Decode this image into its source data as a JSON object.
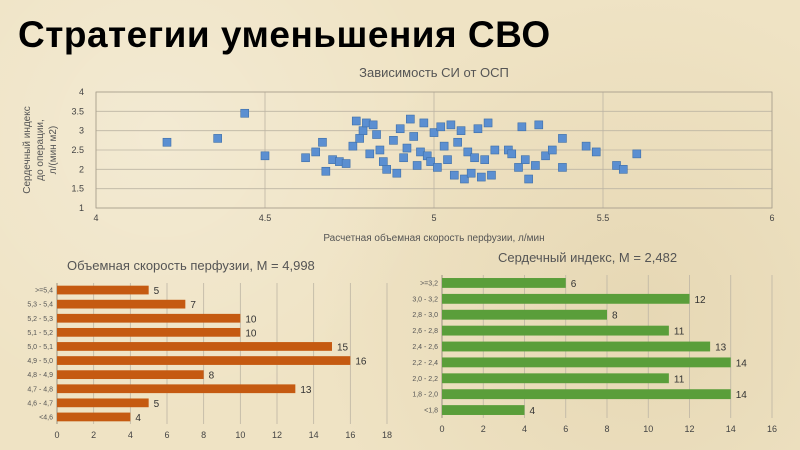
{
  "page": {
    "title": "Стратегии уменьшения СВО"
  },
  "chart_data": [
    {
      "type": "scatter",
      "title": "Зависимость СИ от ОСП",
      "xlabel": "Расчетная объемная скорость перфузии, л/мин",
      "ylabel_lines": [
        "Сердечный индекс",
        "до операции,",
        "л/(мин м2)"
      ],
      "xlim": [
        4,
        6
      ],
      "ylim": [
        1,
        4
      ],
      "xticks": [
        "4",
        "4.5",
        "5",
        "5.5",
        "6"
      ],
      "yticks": [
        "1",
        "1.5",
        "2",
        "2.5",
        "3",
        "3.5",
        "4"
      ],
      "grid": true,
      "marker_color": "#5b8fd1",
      "points": [
        [
          4.21,
          2.7
        ],
        [
          4.36,
          2.8
        ],
        [
          4.44,
          3.45
        ],
        [
          4.5,
          2.35
        ],
        [
          4.62,
          2.3
        ],
        [
          4.65,
          2.45
        ],
        [
          4.67,
          2.7
        ],
        [
          4.68,
          1.95
        ],
        [
          4.7,
          2.25
        ],
        [
          4.72,
          2.2
        ],
        [
          4.74,
          2.15
        ],
        [
          4.76,
          2.6
        ],
        [
          4.77,
          3.25
        ],
        [
          4.78,
          2.8
        ],
        [
          4.79,
          3.0
        ],
        [
          4.8,
          3.2
        ],
        [
          4.81,
          2.4
        ],
        [
          4.82,
          3.15
        ],
        [
          4.83,
          2.9
        ],
        [
          4.84,
          2.5
        ],
        [
          4.85,
          2.2
        ],
        [
          4.86,
          2.0
        ],
        [
          4.88,
          2.75
        ],
        [
          4.89,
          1.9
        ],
        [
          4.9,
          3.05
        ],
        [
          4.91,
          2.3
        ],
        [
          4.92,
          2.55
        ],
        [
          4.93,
          3.3
        ],
        [
          4.94,
          2.85
        ],
        [
          4.95,
          2.1
        ],
        [
          4.96,
          2.45
        ],
        [
          4.97,
          3.2
        ],
        [
          4.98,
          2.35
        ],
        [
          4.99,
          2.2
        ],
        [
          5.0,
          2.95
        ],
        [
          5.01,
          2.05
        ],
        [
          5.02,
          3.1
        ],
        [
          5.03,
          2.6
        ],
        [
          5.04,
          2.25
        ],
        [
          5.05,
          3.15
        ],
        [
          5.06,
          1.85
        ],
        [
          5.07,
          2.7
        ],
        [
          5.08,
          3.0
        ],
        [
          5.09,
          1.75
        ],
        [
          5.1,
          2.45
        ],
        [
          5.11,
          1.9
        ],
        [
          5.12,
          2.3
        ],
        [
          5.13,
          3.05
        ],
        [
          5.14,
          1.8
        ],
        [
          5.15,
          2.25
        ],
        [
          5.16,
          3.2
        ],
        [
          5.17,
          1.85
        ],
        [
          5.18,
          2.5
        ],
        [
          5.22,
          2.5
        ],
        [
          5.23,
          2.4
        ],
        [
          5.25,
          2.05
        ],
        [
          5.26,
          3.1
        ],
        [
          5.27,
          2.25
        ],
        [
          5.28,
          1.75
        ],
        [
          5.3,
          2.1
        ],
        [
          5.31,
          3.15
        ],
        [
          5.33,
          2.35
        ],
        [
          5.35,
          2.5
        ],
        [
          5.38,
          2.8
        ],
        [
          5.38,
          2.05
        ],
        [
          5.45,
          2.6
        ],
        [
          5.48,
          2.45
        ],
        [
          5.54,
          2.1
        ],
        [
          5.56,
          2.0
        ],
        [
          5.6,
          2.4
        ]
      ]
    },
    {
      "type": "bar",
      "orientation": "horizontal",
      "title": "Объемная скорость перфузии, М = 4,998",
      "color": "#c55a11",
      "categories": [
        ">=5,4",
        "5,3 - 5,4",
        "5,2 - 5,3",
        "5,1 - 5,2",
        "5,0 - 5,1",
        "4,9 - 5,0",
        "4,8 - 4,9",
        "4,7 - 4,8",
        "4,6 - 4,7",
        "<4,6"
      ],
      "values": [
        5,
        7,
        10,
        10,
        15,
        16,
        8,
        13,
        5,
        4
      ],
      "xlim": [
        0,
        18
      ],
      "xticks": [
        "0",
        "2",
        "4",
        "6",
        "8",
        "10",
        "12",
        "14",
        "16",
        "18"
      ],
      "grid": true
    },
    {
      "type": "bar",
      "orientation": "horizontal",
      "title": "Сердечный индекс, М = 2,482",
      "color": "#5a9e3a",
      "categories": [
        ">=3,2",
        "3,0 - 3,2",
        "2,8 - 3,0",
        "2,6 - 2,8",
        "2,4 - 2,6",
        "2,2 - 2,4",
        "2,0 - 2,2",
        "1,8 - 2,0",
        "<1,8"
      ],
      "values": [
        6,
        12,
        8,
        11,
        13,
        14,
        11,
        14,
        4
      ],
      "xlim": [
        0,
        16
      ],
      "xticks": [
        "0",
        "2",
        "4",
        "6",
        "8",
        "10",
        "12",
        "14",
        "16"
      ],
      "grid": true
    }
  ]
}
